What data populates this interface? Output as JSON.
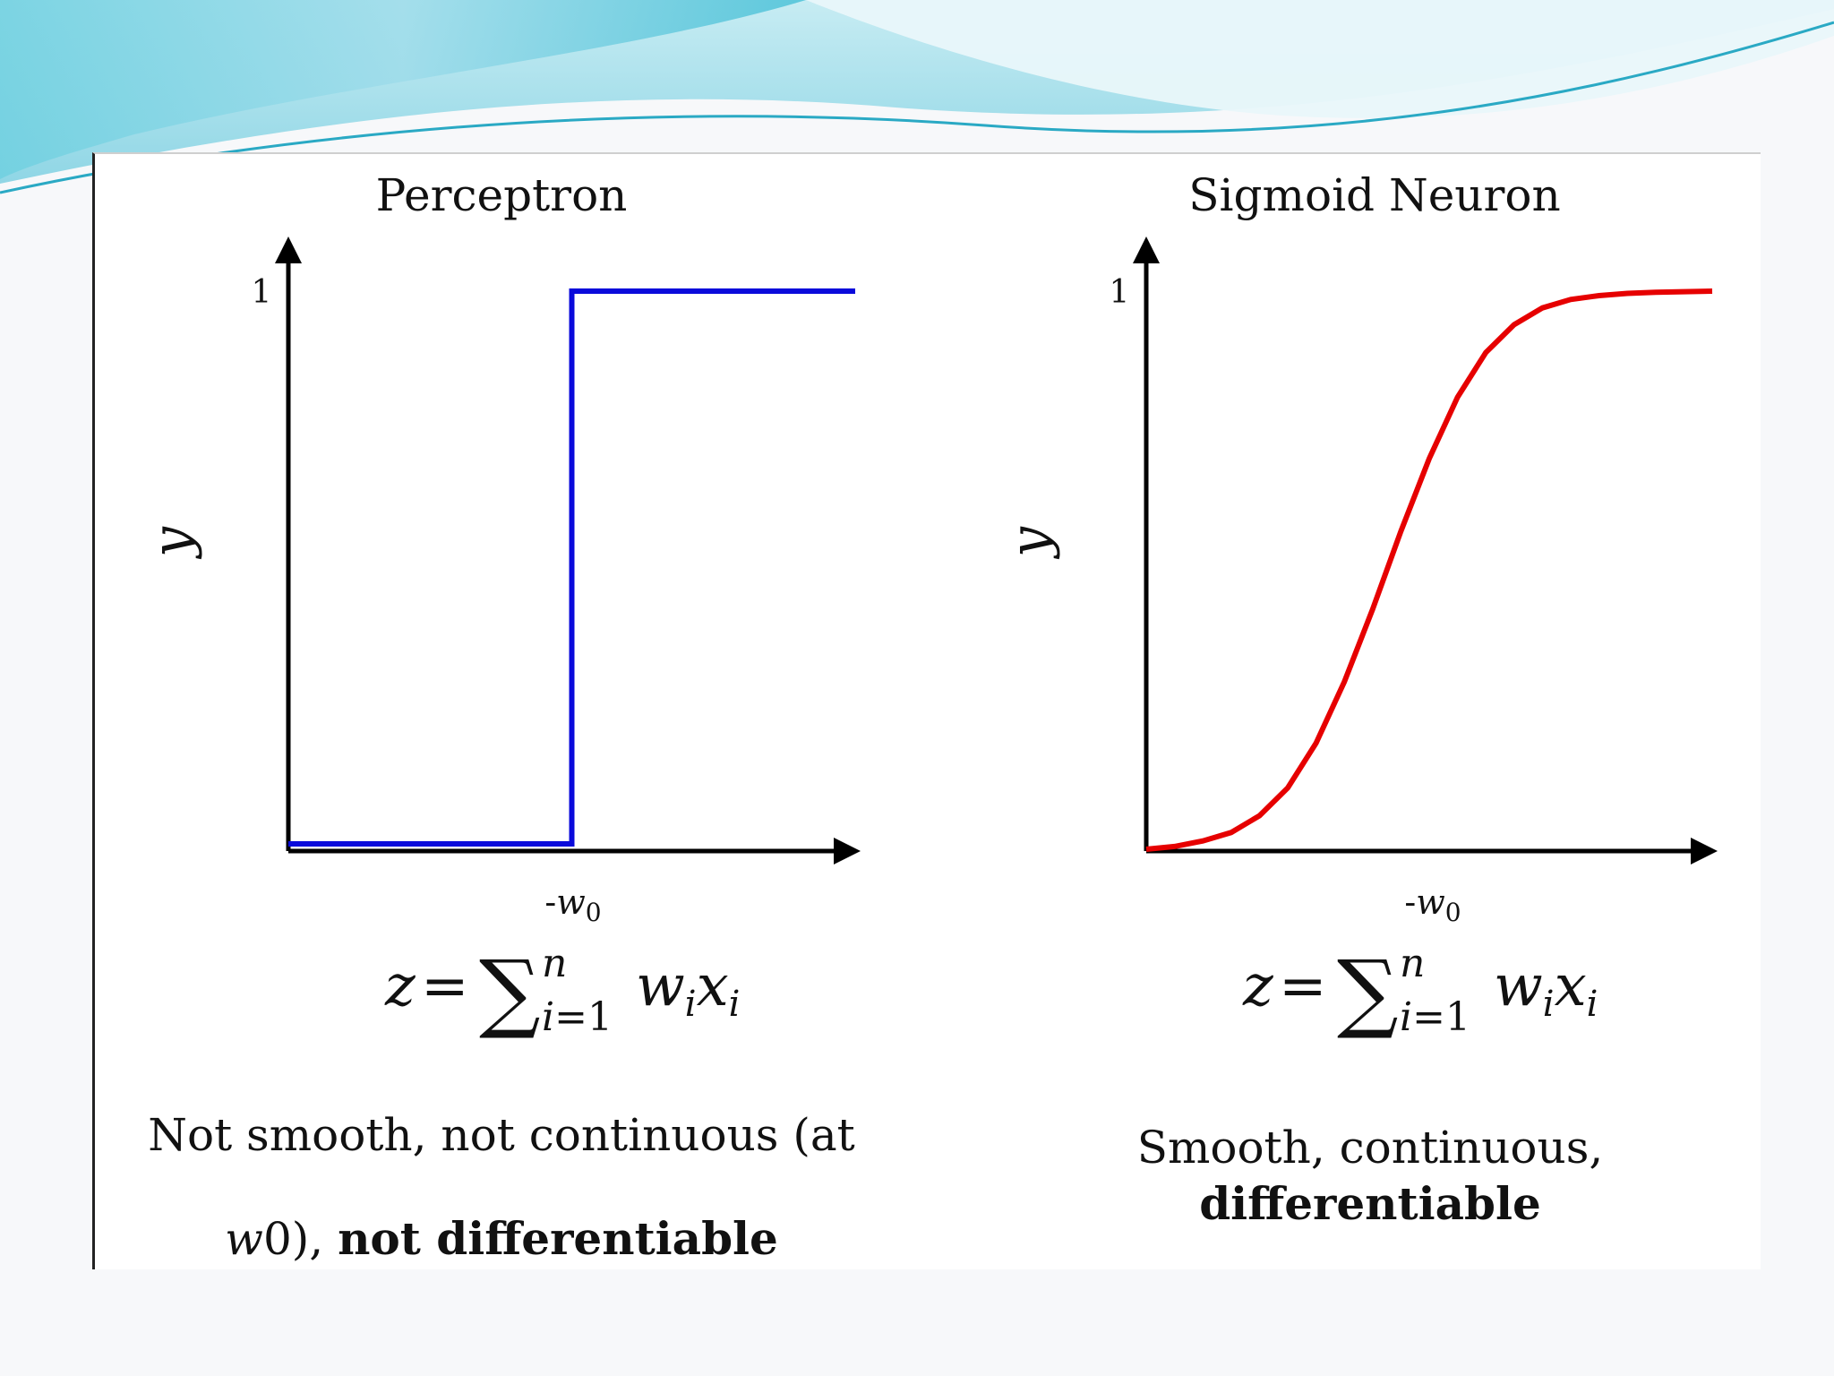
{
  "colors": {
    "perceptron_line": "#0a0adb",
    "sigmoid_line": "#e60000",
    "axis": "#000000",
    "wave_light": "#bfe8f0",
    "wave_mid": "#7fd3e3",
    "wave_dark": "#3cb5d0"
  },
  "chart_data": [
    {
      "type": "line",
      "title": "Perceptron",
      "ylabel": "y",
      "xlabel": "",
      "ytick_labels": [
        "1"
      ],
      "xtick_labels": [
        "-w0"
      ],
      "ylim": [
        0,
        1
      ],
      "xlim": [
        0,
        2
      ],
      "threshold_x": 1,
      "series": [
        {
          "x": [
            0,
            1,
            1,
            2
          ],
          "y": [
            0,
            0,
            1,
            1
          ]
        }
      ],
      "formula": "z=∑ i=1 n w_i x_i",
      "caption_parts": {
        "plain": "Not smooth, not continuous (at ",
        "italic": "w",
        "after_italic": "0), ",
        "bold": "not differentiable"
      },
      "grid": false
    },
    {
      "type": "line",
      "title": "Sigmoid Neuron",
      "ylabel": "y",
      "xlabel": "",
      "ytick_labels": [
        "1"
      ],
      "xtick_labels": [
        "-w0"
      ],
      "ylim": [
        0,
        1
      ],
      "xlim": [
        0,
        2
      ],
      "series": [
        {
          "x": [
            0,
            0.1,
            0.2,
            0.3,
            0.4,
            0.5,
            0.6,
            0.7,
            0.8,
            0.9,
            1.0,
            1.1,
            1.2,
            1.3,
            1.4,
            1.5,
            1.6,
            1.7,
            1.8,
            1.9,
            2.0
          ],
          "y": [
            0.0,
            0.005,
            0.015,
            0.03,
            0.06,
            0.11,
            0.19,
            0.3,
            0.43,
            0.57,
            0.7,
            0.81,
            0.89,
            0.94,
            0.97,
            0.985,
            0.992,
            0.996,
            0.998,
            0.999,
            1.0
          ]
        }
      ],
      "formula": "z=∑ i=1 n w_i x_i",
      "caption_parts": {
        "plain": "Smooth, continuous, ",
        "bold": "differentiable"
      },
      "grid": false
    }
  ]
}
